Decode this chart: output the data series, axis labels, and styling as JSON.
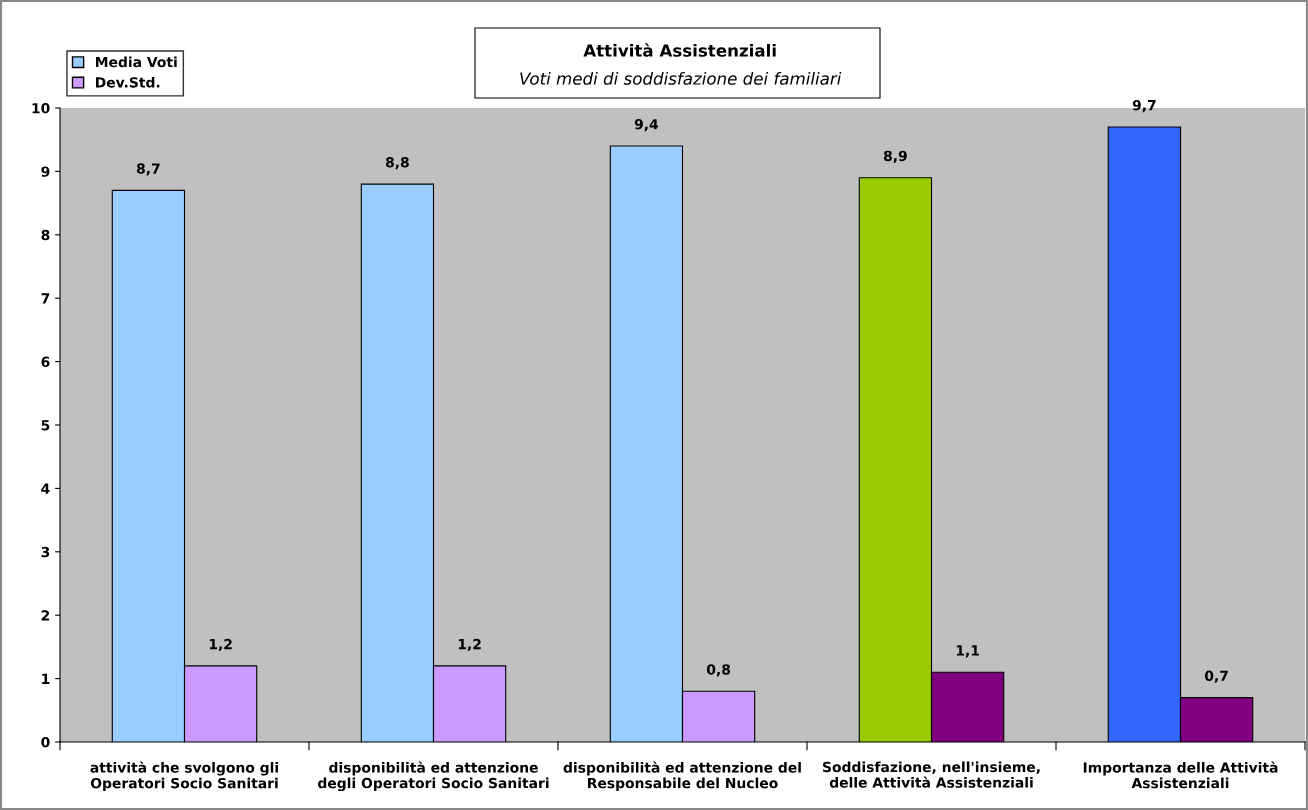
{
  "chart_data": {
    "type": "bar",
    "title": "Attività Assistenziali",
    "subtitle": "Voti medi di soddisfazione dei familiari",
    "categories": [
      "attività che svolgono gli\nOperatori Socio Sanitari",
      "disponibilità ed attenzione\ndegli Operatori Socio Sanitari",
      "disponibilità ed attenzione del\nResponsabile del Nucleo",
      "Soddisfazione, nell'insieme,\ndelle Attività Assistenziali",
      "Importanza delle Attività\nAssistenziali"
    ],
    "series": [
      {
        "name": "Media Voti",
        "color": "#99ccff",
        "colors": [
          "#99ccff",
          "#99ccff",
          "#99ccff",
          "#99cc00",
          "#3366ff"
        ],
        "values": [
          8.7,
          8.8,
          9.4,
          8.9,
          9.7
        ],
        "value_labels": [
          "8,7",
          "8,8",
          "9,4",
          "8,9",
          "9,7"
        ]
      },
      {
        "name": "Dev.Std.",
        "color": "#cc99ff",
        "colors": [
          "#cc99ff",
          "#cc99ff",
          "#cc99ff",
          "#800080",
          "#800080"
        ],
        "values": [
          1.2,
          1.2,
          0.8,
          1.1,
          0.7
        ],
        "value_labels": [
          "1,2",
          "1,2",
          "0,8",
          "1,1",
          "0,7"
        ]
      }
    ],
    "ylim": [
      0,
      10
    ],
    "yticks": [
      0,
      1,
      2,
      3,
      4,
      5,
      6,
      7,
      8,
      9,
      10
    ],
    "grid": false,
    "legend": "top left"
  }
}
